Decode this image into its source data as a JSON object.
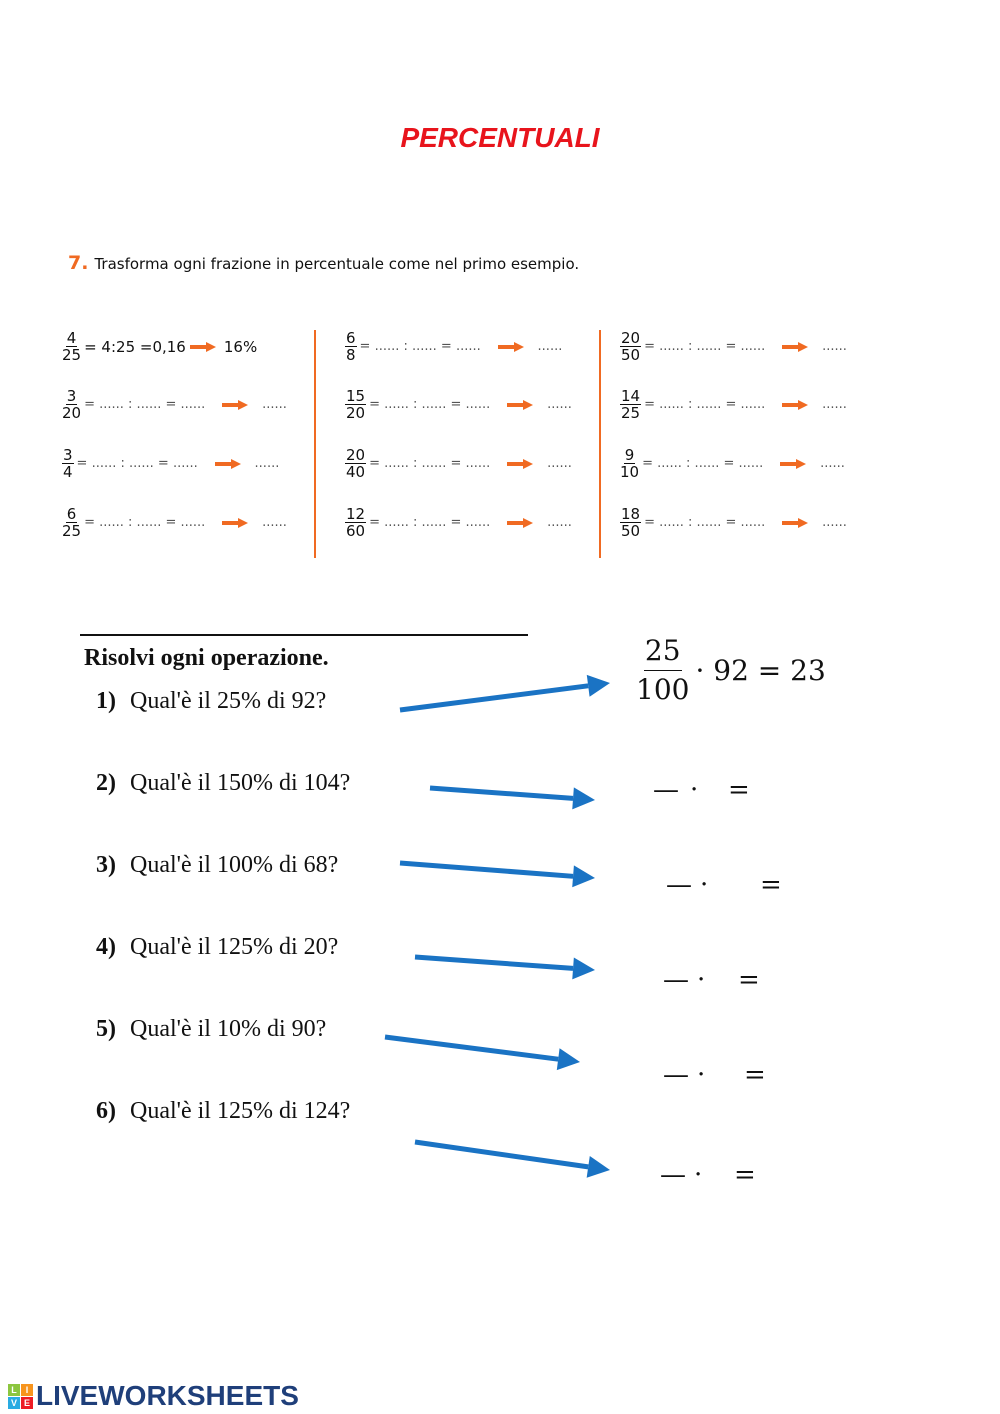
{
  "title": "PERCENTUALI",
  "exercise": {
    "number": "7.",
    "instruction": "Trasforma ogni frazione in percentuale come nel primo esempio.",
    "example": {
      "num": "4",
      "den": "25",
      "division": "= 4:25 =0,16",
      "result": "16%"
    },
    "blank": "= ...... : ...... = ......",
    "blank_result": "......",
    "columns": [
      [
        {
          "num": "4",
          "den": "25"
        },
        {
          "num": "3",
          "den": "20"
        },
        {
          "num": "3",
          "den": "4"
        },
        {
          "num": "6",
          "den": "25"
        }
      ],
      [
        {
          "num": "6",
          "den": "8"
        },
        {
          "num": "15",
          "den": "20"
        },
        {
          "num": "20",
          "den": "40"
        },
        {
          "num": "12",
          "den": "60"
        }
      ],
      [
        {
          "num": "20",
          "den": "50"
        },
        {
          "num": "14",
          "den": "25"
        },
        {
          "num": "9",
          "den": "10"
        },
        {
          "num": "18",
          "den": "50"
        }
      ]
    ],
    "colors": {
      "accent": "#f06a22",
      "title": "#e8141c"
    }
  },
  "operations": {
    "heading": "Risolvi ogni operazione.",
    "questions": [
      {
        "n": "1)",
        "text": "Qual'è il 25% di 92?"
      },
      {
        "n": "2)",
        "text": "Qual'è il 150% di 104?"
      },
      {
        "n": "3)",
        "text": "Qual'è il 100% di 68?"
      },
      {
        "n": "4)",
        "text": "Qual'è il 125% di 20?"
      },
      {
        "n": "5)",
        "text": "Qual'è il 10% di 90?"
      },
      {
        "n": "6)",
        "text": "Qual'è il 125% di 124?"
      }
    ],
    "answer1": {
      "num": "25",
      "den": "100",
      "rest": "· 92 = 23"
    },
    "blank_answer": {
      "dash": "—",
      "dot": "·",
      "eq": "="
    },
    "arrow_color": "#1a73c4"
  },
  "footer": {
    "logo": "LIVEWORKSHEETS",
    "logo_letters": [
      "L",
      "I",
      "V",
      "E"
    ]
  }
}
